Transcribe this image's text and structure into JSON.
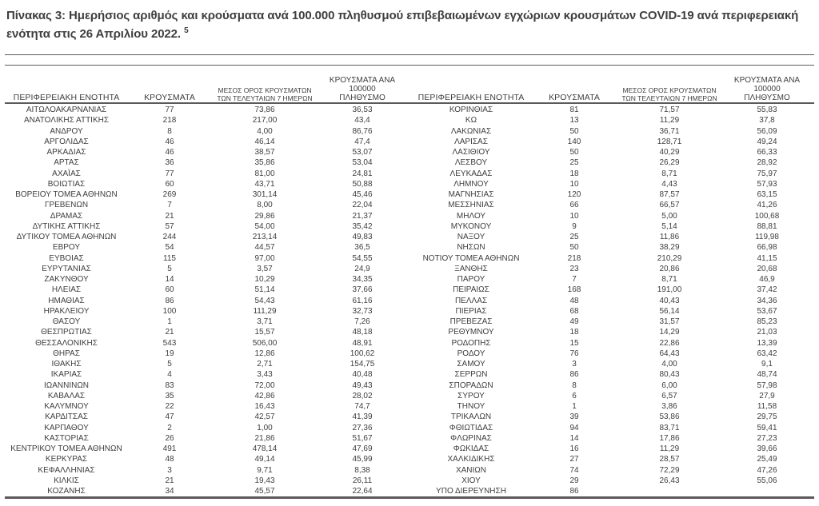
{
  "title": {
    "text": "Πίνακας 3:  Ημερήσιος αριθμός και κρούσματα ανά 100.000 πληθυσμού επιβεβαιωμένων εγχώριων κρουσμάτων COVID-19 ανά περιφερειακή ενότητα στις 26 Απριλίου 2022.",
    "footnote_ref": "5"
  },
  "colors": {
    "text": "#3e3e3e",
    "rule": "#5a5a5c"
  },
  "table": {
    "headers": {
      "region": "ΠΕΡΙΦΕΡΕΙΑΚΗ ΕΝΟΤΗΤΑ",
      "cases": "ΚΡΟΥΣΜΑΤΑ",
      "avg7_line1": "ΜΕΣΟΣ ΟΡΟΣ ΚΡΟΥΣΜΑΤΩΝ",
      "avg7_line2": "ΤΩΝ ΤΕΛΕΥΤΑΙΩΝ 7 ΗΜΕΡΩΝ",
      "per100k_line1": "ΚΡΟΥΣΜΑΤΑ ΑΝΑ 100000",
      "per100k_line2": "ΠΛΗΘΥΣΜΟ"
    },
    "left_rows": [
      [
        "ΑΙΤΩΛΟΑΚΑΡΝΑΝΙΑΣ",
        "77",
        "73,86",
        "36,53"
      ],
      [
        "ΑΝΑΤΟΛΙΚΗΣ ΑΤΤΙΚΗΣ",
        "218",
        "217,00",
        "43,4"
      ],
      [
        "ΑΝΔΡΟΥ",
        "8",
        "4,00",
        "86,76"
      ],
      [
        "ΑΡΓΟΛΙΔΑΣ",
        "46",
        "46,14",
        "47,4"
      ],
      [
        "ΑΡΚΑΔΙΑΣ",
        "46",
        "38,57",
        "53,07"
      ],
      [
        "ΑΡΤΑΣ",
        "36",
        "35,86",
        "53,04"
      ],
      [
        "ΑΧΑΪΑΣ",
        "77",
        "81,00",
        "24,81"
      ],
      [
        "ΒΟΙΩΤΙΑΣ",
        "60",
        "43,71",
        "50,88"
      ],
      [
        "ΒΟΡΕΙΟΥ ΤΟΜΕΑ ΑΘΗΝΩΝ",
        "269",
        "301,14",
        "45,46"
      ],
      [
        "ΓΡΕΒΕΝΩΝ",
        "7",
        "8,00",
        "22,04"
      ],
      [
        "ΔΡΑΜΑΣ",
        "21",
        "29,86",
        "21,37"
      ],
      [
        "ΔΥΤΙΚΗΣ ΑΤΤΙΚΗΣ",
        "57",
        "54,00",
        "35,42"
      ],
      [
        "ΔΥΤΙΚΟΥ ΤΟΜΕΑ ΑΘΗΝΩΝ",
        "244",
        "213,14",
        "49,83"
      ],
      [
        "ΕΒΡΟΥ",
        "54",
        "44,57",
        "36,5"
      ],
      [
        "ΕΥΒΟΙΑΣ",
        "115",
        "97,00",
        "54,55"
      ],
      [
        "ΕΥΡΥΤΑΝΙΑΣ",
        "5",
        "3,57",
        "24,9"
      ],
      [
        "ΖΑΚΥΝΘΟΥ",
        "14",
        "10,29",
        "34,35"
      ],
      [
        "ΗΛΕΙΑΣ",
        "60",
        "51,14",
        "37,66"
      ],
      [
        "ΗΜΑΘΙΑΣ",
        "86",
        "54,43",
        "61,16"
      ],
      [
        "ΗΡΑΚΛΕΙΟΥ",
        "100",
        "111,29",
        "32,73"
      ],
      [
        "ΘΑΣΟΥ",
        "1",
        "3,71",
        "7,26"
      ],
      [
        "ΘΕΣΠΡΩΤΙΑΣ",
        "21",
        "15,57",
        "48,18"
      ],
      [
        "ΘΕΣΣΑΛΟΝΙΚΗΣ",
        "543",
        "506,00",
        "48,91"
      ],
      [
        "ΘΗΡΑΣ",
        "19",
        "12,86",
        "100,62"
      ],
      [
        "ΙΘΑΚΗΣ",
        "5",
        "2,71",
        "154,75"
      ],
      [
        "ΙΚΑΡΙΑΣ",
        "4",
        "3,43",
        "40,48"
      ],
      [
        "ΙΩΑΝΝΙΝΩΝ",
        "83",
        "72,00",
        "49,43"
      ],
      [
        "ΚΑΒΑΛΑΣ",
        "35",
        "42,86",
        "28,02"
      ],
      [
        "ΚΑΛΥΜΝΟΥ",
        "22",
        "16,43",
        "74,7"
      ],
      [
        "ΚΑΡΔΙΤΣΑΣ",
        "47",
        "42,57",
        "41,39"
      ],
      [
        "ΚΑΡΠΑΘΟΥ",
        "2",
        "1,00",
        "27,36"
      ],
      [
        "ΚΑΣΤΟΡΙΑΣ",
        "26",
        "21,86",
        "51,67"
      ],
      [
        "ΚΕΝΤΡΙΚΟΥ ΤΟΜΕΑ ΑΘΗΝΩΝ",
        "491",
        "478,14",
        "47,69"
      ],
      [
        "ΚΕΡΚΥΡΑΣ",
        "48",
        "49,14",
        "45,99"
      ],
      [
        "ΚΕΦΑΛΛΗΝΙΑΣ",
        "3",
        "9,71",
        "8,38"
      ],
      [
        "ΚΙΛΚΙΣ",
        "21",
        "19,43",
        "26,11"
      ],
      [
        "ΚΟΖΑΝΗΣ",
        "34",
        "45,57",
        "22,64"
      ]
    ],
    "right_rows": [
      [
        "ΚΟΡΙΝΘΙΑΣ",
        "81",
        "71,57",
        "55,83"
      ],
      [
        "ΚΩ",
        "13",
        "11,29",
        "37,8"
      ],
      [
        "ΛΑΚΩΝΙΑΣ",
        "50",
        "36,71",
        "56,09"
      ],
      [
        "ΛΑΡΙΣΑΣ",
        "140",
        "128,71",
        "49,24"
      ],
      [
        "ΛΑΣΙΘΙΟΥ",
        "50",
        "40,29",
        "66,33"
      ],
      [
        "ΛΕΣΒΟΥ",
        "25",
        "26,29",
        "28,92"
      ],
      [
        "ΛΕΥΚΑΔΑΣ",
        "18",
        "8,71",
        "75,97"
      ],
      [
        "ΛΗΜΝΟΥ",
        "10",
        "4,43",
        "57,93"
      ],
      [
        "ΜΑΓΝΗΣΙΑΣ",
        "120",
        "87,57",
        "63,15"
      ],
      [
        "ΜΕΣΣΗΝΙΑΣ",
        "66",
        "66,57",
        "41,26"
      ],
      [
        "ΜΗΛΟΥ",
        "10",
        "5,00",
        "100,68"
      ],
      [
        "ΜΥΚΟΝΟΥ",
        "9",
        "5,14",
        "88,81"
      ],
      [
        "ΝΑΞΟΥ",
        "25",
        "11,86",
        "119,98"
      ],
      [
        "ΝΗΣΩΝ",
        "50",
        "38,29",
        "66,98"
      ],
      [
        "ΝΟΤΙΟΥ ΤΟΜΕΑ ΑΘΗΝΩΝ",
        "218",
        "210,29",
        "41,15"
      ],
      [
        "ΞΑΝΘΗΣ",
        "23",
        "20,86",
        "20,68"
      ],
      [
        "ΠΑΡΟΥ",
        "7",
        "8,71",
        "46,9"
      ],
      [
        "ΠΕΙΡΑΙΩΣ",
        "168",
        "191,00",
        "37,42"
      ],
      [
        "ΠΕΛΛΑΣ",
        "48",
        "40,43",
        "34,36"
      ],
      [
        "ΠΙΕΡΙΑΣ",
        "68",
        "56,14",
        "53,67"
      ],
      [
        "ΠΡΕΒΕΖΑΣ",
        "49",
        "31,57",
        "85,23"
      ],
      [
        "ΡΕΘΥΜΝΟΥ",
        "18",
        "14,29",
        "21,03"
      ],
      [
        "ΡΟΔΟΠΗΣ",
        "15",
        "22,86",
        "13,39"
      ],
      [
        "ΡΟΔΟΥ",
        "76",
        "64,43",
        "63,42"
      ],
      [
        "ΣΑΜΟΥ",
        "3",
        "4,00",
        "9,1"
      ],
      [
        "ΣΕΡΡΩΝ",
        "86",
        "80,43",
        "48,74"
      ],
      [
        "ΣΠΟΡΑΔΩΝ",
        "8",
        "6,00",
        "57,98"
      ],
      [
        "ΣΥΡΟΥ",
        "6",
        "6,57",
        "27,9"
      ],
      [
        "ΤΗΝΟΥ",
        "1",
        "3,86",
        "11,58"
      ],
      [
        "ΤΡΙΚΑΛΩΝ",
        "39",
        "53,86",
        "29,75"
      ],
      [
        "ΦΘΙΩΤΙΔΑΣ",
        "94",
        "83,71",
        "59,41"
      ],
      [
        "ΦΛΩΡΙΝΑΣ",
        "14",
        "17,86",
        "27,23"
      ],
      [
        "ΦΩΚΙΔΑΣ",
        "16",
        "11,29",
        "39,66"
      ],
      [
        "ΧΑΛΚΙΔΙΚΗΣ",
        "27",
        "28,57",
        "25,49"
      ],
      [
        "ΧΑΝΙΩΝ",
        "74",
        "72,29",
        "47,26"
      ],
      [
        "ΧΙΟΥ",
        "29",
        "26,43",
        "55,06"
      ],
      [
        "ΥΠΟ ΔΙΕΡΕΥΝΗΣΗ",
        "86",
        "",
        ""
      ]
    ]
  }
}
